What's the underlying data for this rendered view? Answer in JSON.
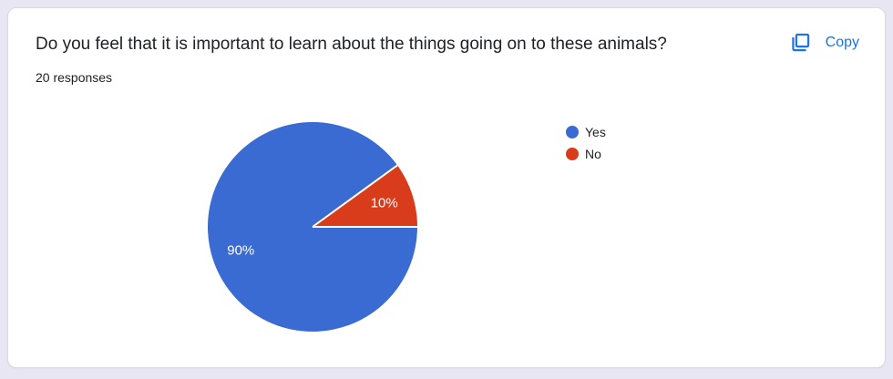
{
  "page": {
    "background_color": "#e9e6f4"
  },
  "card": {
    "title": "Do you feel that it is important to learn about the things going on to these animals?",
    "responses_label": "20 responses",
    "copy_button": {
      "label": "Copy",
      "color": "#1a73e8"
    }
  },
  "chart_data": {
    "type": "pie",
    "title": "Do you feel that it is important to learn about the things going on to these animals?",
    "subtitle": "20 responses",
    "total_responses": 20,
    "labels": [
      "Yes",
      "No"
    ],
    "values": [
      90,
      10
    ],
    "values_unit": "percent",
    "counts": [
      18,
      2
    ],
    "slice_labels": [
      "90%",
      "10%"
    ],
    "colors": [
      "#3a6bd2",
      "#d93c1a"
    ],
    "slice_border_color": "#ffffff",
    "slice_label_color": "#ffffff",
    "start_angle": "east",
    "direction": "clockwise",
    "legend_position": "right"
  }
}
